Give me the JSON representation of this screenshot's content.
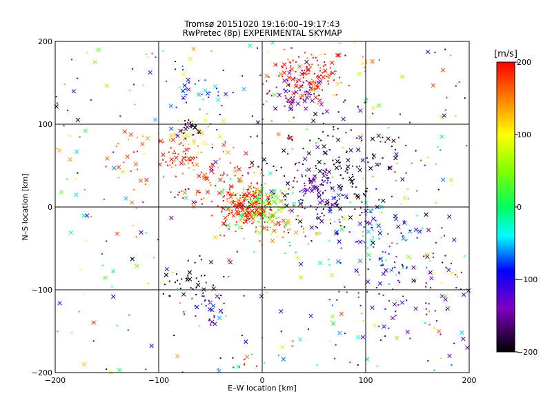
{
  "chart_data": {
    "type": "scatter",
    "title": "Tromsø 20151020 19:16:00–19:17:43",
    "subtitle": "RwPretec (8p) EXPERIMENTAL SKYMAP",
    "xlabel": "E–W location [km]",
    "ylabel": "N–S location [km]",
    "xlim": [
      -200,
      200
    ],
    "ylim": [
      -200,
      200
    ],
    "xticks": [
      "−200",
      "−100",
      "0",
      "100",
      "200"
    ],
    "yticks": [
      "−200",
      "−100",
      "0",
      "100",
      "200"
    ],
    "grid": true,
    "colorbar": {
      "label": "[m/s]",
      "range": [
        -200,
        200
      ],
      "ticks": [
        "200",
        "100",
        "0",
        "−100",
        "−200"
      ]
    },
    "clusters": [
      {
        "x": 0,
        "y": 0,
        "vel": 40,
        "n": 140,
        "spread": 12
      },
      {
        "x": -15,
        "y": 0,
        "vel": 190,
        "n": 160,
        "spread": 14
      },
      {
        "x": -45,
        "y": 35,
        "vel": 180,
        "n": 90,
        "spread": 25
      },
      {
        "x": -80,
        "y": 60,
        "vel": 190,
        "n": 40,
        "spread": 10
      },
      {
        "x": -65,
        "y": 85,
        "vel": 110,
        "n": 30,
        "spread": 12
      },
      {
        "x": 45,
        "y": 160,
        "vel": 200,
        "n": 120,
        "spread": 16
      },
      {
        "x": 30,
        "y": 140,
        "vel": -130,
        "n": 60,
        "spread": 15
      },
      {
        "x": -60,
        "y": 140,
        "vel": -90,
        "n": 40,
        "spread": 16
      },
      {
        "x": -70,
        "y": 95,
        "vel": -200,
        "n": 25,
        "spread": 6
      },
      {
        "x": 70,
        "y": 40,
        "vel": -190,
        "n": 200,
        "spread": 35
      },
      {
        "x": 60,
        "y": 20,
        "vel": -120,
        "n": 80,
        "spread": 20
      },
      {
        "x": 110,
        "y": -30,
        "vel": -60,
        "n": 80,
        "spread": 25
      },
      {
        "x": 140,
        "y": -100,
        "vel": -130,
        "n": 100,
        "spread": 35
      },
      {
        "x": -70,
        "y": -90,
        "vel": -200,
        "n": 40,
        "spread": 15
      },
      {
        "x": -50,
        "y": -125,
        "vel": -110,
        "n": 25,
        "spread": 10
      },
      {
        "x": -20,
        "y": -190,
        "vel": 190,
        "n": 10,
        "spread": 8
      },
      {
        "x": 20,
        "y": -20,
        "vel": 150,
        "n": 30,
        "spread": 12
      },
      {
        "x": 100,
        "y": 175,
        "vel": 150,
        "n": 8,
        "spread": 5
      },
      {
        "x": -120,
        "y": 60,
        "vel": 180,
        "n": 20,
        "spread": 18
      }
    ],
    "scatter_background": {
      "n": 380
    }
  }
}
